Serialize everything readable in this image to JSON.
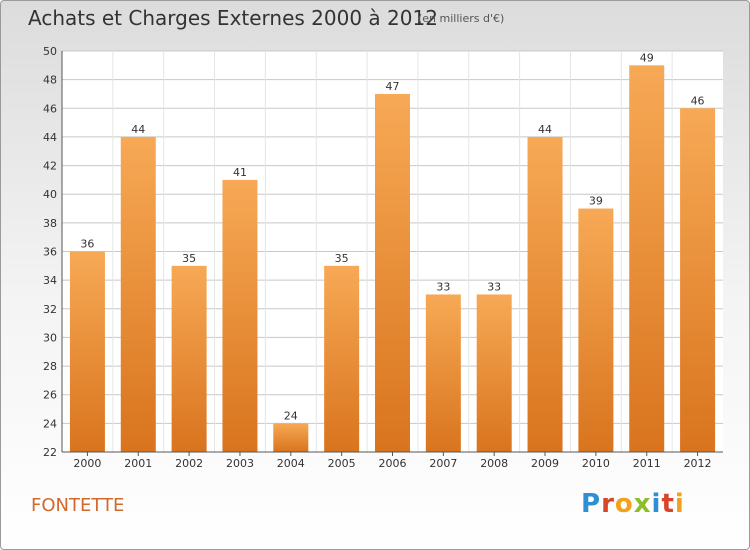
{
  "header": {
    "title": "Achats et Charges Externes 2000 à 2012",
    "subtitle": "(en milliers d'€)"
  },
  "footer": {
    "commune": "FONTETTE",
    "logo_letters": [
      "P",
      "r",
      "o",
      "x",
      "i",
      "t",
      "i"
    ],
    "logo_colors": [
      "#2f8fd4",
      "#d9452b",
      "#f2a21a",
      "#8cbf26",
      "#2f8fd4",
      "#d9452b",
      "#f2a21a"
    ]
  },
  "colors": {
    "bar_light": "#f7a955",
    "bar_dark": "#d9741e",
    "grid": "#c8c8c8",
    "axis": "#555555"
  },
  "chart_data": {
    "type": "bar",
    "categories": [
      "2000",
      "2001",
      "2002",
      "2003",
      "2004",
      "2005",
      "2006",
      "2007",
      "2008",
      "2009",
      "2010",
      "2011",
      "2012"
    ],
    "values": [
      36,
      44,
      35,
      41,
      24,
      35,
      47,
      33,
      33,
      44,
      39,
      49,
      46
    ],
    "title": "Achats et Charges Externes 2000 à 2012",
    "xlabel": "",
    "ylabel": "",
    "ylim": [
      22,
      50
    ],
    "yticks": [
      22,
      24,
      26,
      28,
      30,
      32,
      34,
      36,
      38,
      40,
      42,
      44,
      46,
      48,
      50
    ],
    "grid": true,
    "data_labels": true
  }
}
